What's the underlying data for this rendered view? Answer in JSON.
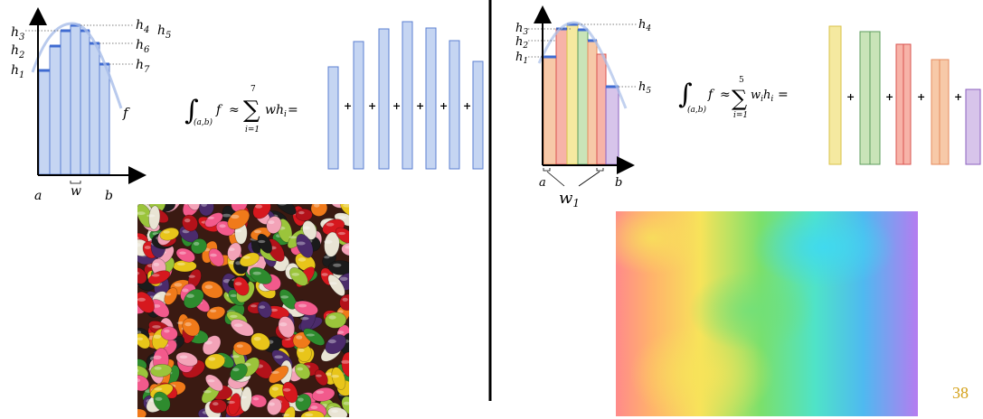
{
  "left_panel": {
    "axis_labels": {
      "a": "a",
      "b": "b",
      "width": "w",
      "function": "f"
    },
    "heights": [
      {
        "name": "h",
        "sub": "1"
      },
      {
        "name": "h",
        "sub": "2"
      },
      {
        "name": "h",
        "sub": "3"
      },
      {
        "name": "h",
        "sub": "4"
      },
      {
        "name": "h",
        "sub": "5"
      },
      {
        "name": "h",
        "sub": "6"
      },
      {
        "name": "h",
        "sub": "7"
      }
    ],
    "formula": {
      "integral_domain": "(a,b)",
      "integrand": "f",
      "approx": "≈",
      "sum_upper": "7",
      "sum_lower": "i=1",
      "summand": "wh",
      "summand_sub": "i",
      "equals": "="
    },
    "bar_fill": "#c5d5f2",
    "bar_stroke": "#5b7fd1"
  },
  "right_panel": {
    "axis_labels": {
      "a": "a",
      "b": "b",
      "width": "w",
      "width_sub": "1"
    },
    "heights": [
      {
        "name": "h",
        "sub": "1"
      },
      {
        "name": "h",
        "sub": "2"
      },
      {
        "name": "h",
        "sub": "3"
      },
      {
        "name": "h",
        "sub": "4"
      },
      {
        "name": "h",
        "sub": "5"
      }
    ],
    "formula": {
      "integral_domain": "(a,b)",
      "integrand": "f",
      "approx": "≈",
      "sum_upper": "5",
      "sum_lower": "i=1",
      "summand_w": "w",
      "summand_h": "h",
      "summand_sub": "i",
      "equals": "="
    },
    "bar_colors": [
      "#f7c9a8",
      "#f5e9a0",
      "#c9e4b8",
      "#f7b3a8",
      "#d7c4ea"
    ],
    "bar_strokes": [
      "#e58b5d",
      "#d9c24a",
      "#5c9c5c",
      "#d9534f",
      "#8b5fbf"
    ]
  },
  "plus_sign": "+",
  "page_number": "38"
}
